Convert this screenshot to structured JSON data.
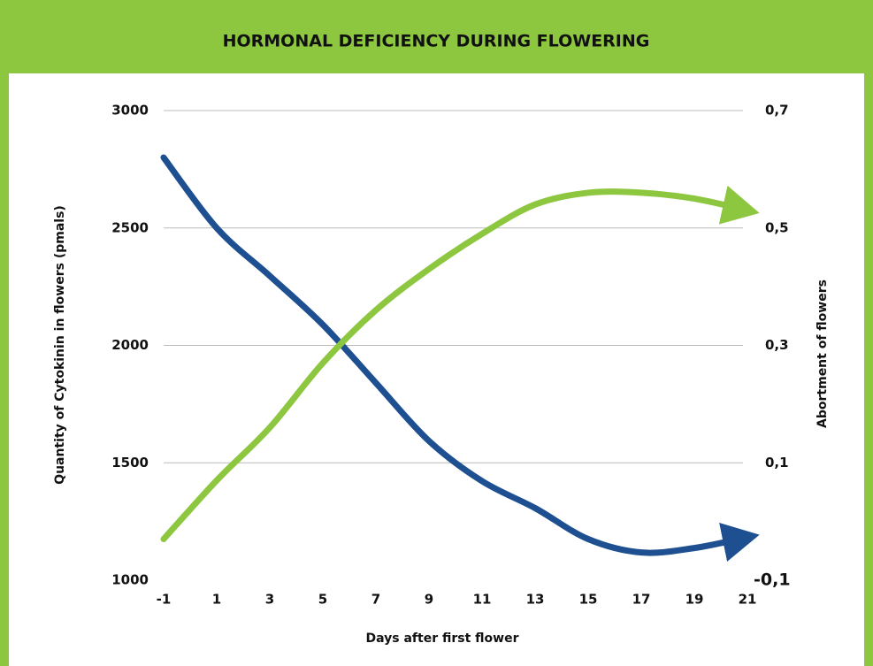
{
  "chart_data": {
    "type": "line",
    "title": "HORMONAL DEFICIENCY DURING FLOWERING",
    "x_label": "Days after first flower",
    "y_label": "Quantity of Cytokinin in flowers (pmals)",
    "y2_label": "Abortment of flowers",
    "x": [
      -1,
      1,
      3,
      5,
      7,
      9,
      11,
      13,
      15,
      17,
      19,
      21
    ],
    "series": [
      {
        "color": "#1d4f91",
        "values": [
          2800,
          2500,
          2296,
          2088,
          1840,
          1593,
          1422,
          1307,
          1175,
          1118,
          1137,
          1183
        ]
      },
      {
        "color": "#8dc63f",
        "axis": "y2",
        "values": [
          -0.03,
          0.07,
          0.16,
          0.27,
          0.36,
          0.43,
          0.49,
          0.54,
          0.56,
          0.56,
          0.55,
          0.53
        ]
      }
    ],
    "xlim": [
      -1,
      21
    ],
    "xticks": [
      -1,
      1,
      3,
      5,
      7,
      9,
      11,
      13,
      15,
      17,
      19,
      21
    ],
    "ylim": [
      1000,
      3000
    ],
    "yticks": [
      1000,
      1500,
      2000,
      2500,
      3000
    ],
    "y2lim": [
      -0.1,
      0.7
    ],
    "y2ticks": [
      {
        "value": -0.1,
        "label": "-0,1"
      },
      {
        "value": 0.1,
        "label": "0,1"
      },
      {
        "value": 0.3,
        "label": "0,3"
      },
      {
        "value": 0.5,
        "label": "0,5"
      },
      {
        "value": 0.7,
        "label": "0,7"
      }
    ],
    "grid": true
  }
}
